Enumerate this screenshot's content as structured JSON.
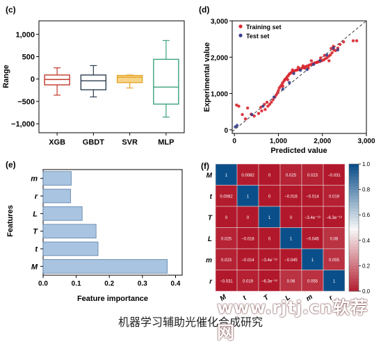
{
  "chart_data": [
    {
      "panel": "(c)",
      "type": "box",
      "ylabel": "Range",
      "ylim": [
        -1200,
        1300
      ],
      "yticks": [
        1000,
        500,
        0,
        -500,
        -1000
      ],
      "ytick_labels": [
        "1,000",
        "500",
        "0",
        "−500",
        "−1,000"
      ],
      "categories": [
        "XGB",
        "GBDT",
        "SVR",
        "MLP"
      ],
      "colors": [
        "#c0392b",
        "#2c3e50",
        "#e6a52a",
        "#3aa37a"
      ],
      "boxes": [
        {
          "min": -360,
          "q1": -130,
          "median": -10,
          "q3": 90,
          "max": 250
        },
        {
          "min": -400,
          "q1": -240,
          "median": -40,
          "q3": 90,
          "max": 300
        },
        {
          "min": -200,
          "q1": -80,
          "median": 40,
          "q3": 80,
          "max": 90
        },
        {
          "min": -850,
          "q1": -560,
          "median": -180,
          "q3": 440,
          "max": 860
        }
      ]
    },
    {
      "panel": "(d)",
      "type": "scatter",
      "xlabel": "Predicted value",
      "ylabel": "Experimental value",
      "xlim": [
        -50,
        3000
      ],
      "ylim": [
        -100,
        3000
      ],
      "ticks": [
        0,
        1000,
        2000,
        3000
      ],
      "tick_labels": [
        "0",
        "1,000",
        "2,000",
        "3,000"
      ],
      "legend": {
        "position": "top-left",
        "entries": [
          "Training set",
          "Test set"
        ]
      },
      "series": [
        {
          "name": "Training set",
          "color": "#d7262e",
          "points": [
            [
              50,
              680
            ],
            [
              100,
              650
            ],
            [
              180,
              420
            ],
            [
              300,
              600
            ],
            [
              450,
              380
            ],
            [
              550,
              450
            ],
            [
              620,
              520
            ],
            [
              700,
              560
            ],
            [
              760,
              650
            ],
            [
              800,
              700
            ],
            [
              840,
              760
            ],
            [
              880,
              830
            ],
            [
              920,
              900
            ],
            [
              950,
              960
            ],
            [
              980,
              1020
            ],
            [
              1000,
              1080
            ],
            [
              1020,
              1150
            ],
            [
              1050,
              1200
            ],
            [
              1080,
              1250
            ],
            [
              1100,
              1300
            ],
            [
              1130,
              1350
            ],
            [
              1150,
              1390
            ],
            [
              1180,
              1420
            ],
            [
              1200,
              1460
            ],
            [
              1230,
              1500
            ],
            [
              1250,
              1540
            ],
            [
              1280,
              1560
            ],
            [
              1300,
              1580
            ],
            [
              1330,
              1600
            ],
            [
              1360,
              1620
            ],
            [
              1400,
              1640
            ],
            [
              1430,
              1650
            ],
            [
              1460,
              1660
            ],
            [
              1500,
              1680
            ],
            [
              1540,
              1700
            ],
            [
              1580,
              1720
            ],
            [
              1620,
              1740
            ],
            [
              1660,
              1760
            ],
            [
              1700,
              1780
            ],
            [
              1740,
              1800
            ],
            [
              1780,
              1820
            ],
            [
              1820,
              1840
            ],
            [
              1860,
              1850
            ],
            [
              1900,
              1870
            ],
            [
              1940,
              1880
            ],
            [
              1980,
              1900
            ],
            [
              2020,
              1920
            ],
            [
              2060,
              1950
            ],
            [
              2100,
              1980
            ],
            [
              2140,
              2020
            ],
            [
              2180,
              2060
            ],
            [
              2220,
              2120
            ],
            [
              2260,
              2200
            ],
            [
              2300,
              2180
            ],
            [
              2350,
              2250
            ],
            [
              2400,
              2350
            ],
            [
              2480,
              2420
            ],
            [
              2700,
              2450
            ],
            [
              2780,
              2450
            ],
            [
              1100,
              1200
            ],
            [
              1210,
              1380
            ],
            [
              1320,
              1650
            ],
            [
              1450,
              1720
            ],
            [
              1600,
              1700
            ],
            [
              1750,
              1900
            ],
            [
              1880,
              1860
            ],
            [
              2050,
              2050
            ],
            [
              2150,
              1900
            ],
            [
              2250,
              2300
            ],
            [
              600,
              620
            ],
            [
              680,
              700
            ],
            [
              740,
              760
            ],
            [
              1560,
              1760
            ],
            [
              1680,
              1700
            ],
            [
              1960,
              1980
            ],
            [
              2200,
              2240
            ],
            [
              250,
              300
            ],
            [
              380,
              430
            ]
          ]
        },
        {
          "name": "Test set",
          "color": "#3a3f8c",
          "points": [
            [
              20,
              80
            ],
            [
              60,
              120
            ],
            [
              400,
              420
            ],
            [
              650,
              650
            ],
            [
              900,
              900
            ],
            [
              1100,
              1120
            ],
            [
              1250,
              1300
            ],
            [
              1350,
              1550
            ],
            [
              1500,
              1640
            ],
            [
              1650,
              1660
            ],
            [
              1800,
              1800
            ],
            [
              1950,
              1900
            ],
            [
              2100,
              2060
            ],
            [
              2250,
              2250
            ],
            [
              2350,
              2200
            ]
          ]
        }
      ]
    },
    {
      "panel": "(e)",
      "type": "bar",
      "orientation": "horizontal",
      "xlabel": "Feature importance",
      "ylabel": "Features",
      "xlim": [
        0,
        0.42
      ],
      "xticks": [
        0.0,
        0.1,
        0.2,
        0.3,
        0.4
      ],
      "xtick_labels": [
        "0.0",
        "0.1",
        "0.2",
        "0.3",
        "0.4"
      ],
      "categories": [
        "m",
        "r",
        "L",
        "T",
        "t",
        "M"
      ],
      "values": [
        0.085,
        0.083,
        0.118,
        0.16,
        0.166,
        0.375
      ],
      "color": "#a8c4e0"
    },
    {
      "panel": "(f)",
      "type": "heatmap",
      "labels": [
        "M",
        "t",
        "T",
        "L",
        "m",
        "r"
      ],
      "values": [
        [
          1,
          0.0082,
          0,
          0.025,
          0.023,
          -0.031
        ],
        [
          0.0082,
          1,
          0,
          -0.016,
          -0.014,
          0.019
        ],
        [
          0,
          0,
          1,
          0,
          -3.4e-18,
          -6.3e-18
        ],
        [
          0.025,
          -0.016,
          0,
          1,
          -0.045,
          0.06
        ],
        [
          0.023,
          -0.014,
          -3.4e-18,
          -0.045,
          1,
          0.055
        ],
        [
          -0.031,
          0.019,
          -6.3e-18,
          0.06,
          0.055,
          1
        ]
      ],
      "cell_labels": [
        [
          "1",
          "0.0082",
          "0",
          "0.025",
          "0.023",
          "−0.031"
        ],
        [
          "0.0082",
          "1",
          "0",
          "−0.016",
          "−0.014",
          "0.019"
        ],
        [
          "0",
          "0",
          "1",
          "0",
          "−3.4e⁻¹⁸",
          "−6.3e⁻¹⁸"
        ],
        [
          "0.025",
          "−0.016",
          "0",
          "1",
          "−0.045",
          "0.06"
        ],
        [
          "0.023",
          "−0.014",
          "−3.4e⁻¹⁸",
          "−0.045",
          "1",
          "0.055"
        ],
        [
          "−0.031",
          "0.019",
          "−6.3e⁻¹⁸",
          "0.06",
          "0.055",
          "1"
        ]
      ],
      "colorbar": {
        "ticks": [
          1.0,
          0.8,
          0.6,
          0.4,
          0.2,
          0.0
        ],
        "tick_labels": [
          "1.0",
          "0.8",
          "0.6",
          "0.4",
          "0.2",
          "0.0"
        ],
        "low_color": "#b2182b",
        "high_color": "#0b4f8a"
      }
    }
  ],
  "caption": "机器学习辅助光催化合成研究",
  "watermark": "www.rjtj.cn软荐网"
}
